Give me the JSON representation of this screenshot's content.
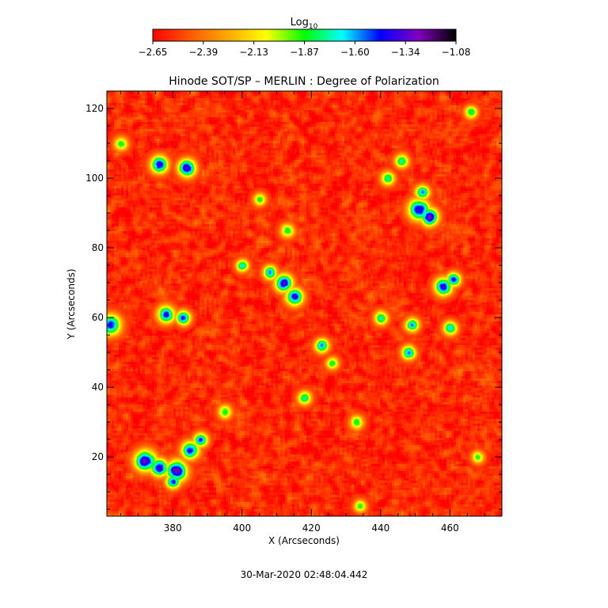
{
  "chart_data": {
    "type": "heatmap",
    "title": "Hinode SOT/SP – MERLIN : Degree of Polarization",
    "xlabel": "X (Arcseconds)",
    "ylabel": "Y (Arcseconds)",
    "xlim": [
      361,
      475
    ],
    "ylim": [
      3,
      125
    ],
    "x_ticks": [
      380,
      400,
      420,
      440,
      460
    ],
    "y_ticks": [
      20,
      40,
      60,
      80,
      100,
      120
    ],
    "colorbar": {
      "label_base": "Log",
      "label_sub": "10",
      "range": [
        -2.65,
        -1.08
      ],
      "ticks": [
        "−2.65",
        "−2.39",
        "−2.13",
        "−1.87",
        "−1.60",
        "−1.34",
        "−1.08"
      ],
      "colormap": [
        "#ff0000",
        "#ff5a00",
        "#ffaa00",
        "#ffff00",
        "#00ff00",
        "#00ffff",
        "#0000ff",
        "#8000c0",
        "#000000"
      ]
    },
    "background_level": -2.58,
    "strong_regions": [
      {
        "x": 376,
        "y": 104,
        "peak": -1.4,
        "radius": 2.5
      },
      {
        "x": 384,
        "y": 103,
        "peak": -1.35,
        "radius": 2.5
      },
      {
        "x": 362,
        "y": 58,
        "peak": -1.5,
        "radius": 3.0
      },
      {
        "x": 378,
        "y": 61,
        "peak": -1.45,
        "radius": 2.5
      },
      {
        "x": 383,
        "y": 60,
        "peak": -1.4,
        "radius": 2.0
      },
      {
        "x": 412,
        "y": 70,
        "peak": -1.35,
        "radius": 2.5
      },
      {
        "x": 415,
        "y": 66,
        "peak": -1.4,
        "radius": 2.5
      },
      {
        "x": 408,
        "y": 73,
        "peak": -1.55,
        "radius": 2.0
      },
      {
        "x": 423,
        "y": 52,
        "peak": -1.55,
        "radius": 2.0
      },
      {
        "x": 451,
        "y": 91,
        "peak": -1.35,
        "radius": 3.0
      },
      {
        "x": 454,
        "y": 89,
        "peak": -1.3,
        "radius": 2.5
      },
      {
        "x": 452,
        "y": 96,
        "peak": -1.5,
        "radius": 2.0
      },
      {
        "x": 458,
        "y": 69,
        "peak": -1.4,
        "radius": 2.5
      },
      {
        "x": 461,
        "y": 71,
        "peak": -1.45,
        "radius": 2.0
      },
      {
        "x": 449,
        "y": 58,
        "peak": -1.6,
        "radius": 2.0
      },
      {
        "x": 460,
        "y": 57,
        "peak": -1.6,
        "radius": 2.0
      },
      {
        "x": 448,
        "y": 50,
        "peak": -1.55,
        "radius": 2.0
      },
      {
        "x": 372,
        "y": 19,
        "peak": -1.3,
        "radius": 3.0
      },
      {
        "x": 376,
        "y": 17,
        "peak": -1.35,
        "radius": 2.5
      },
      {
        "x": 381,
        "y": 16,
        "peak": -1.3,
        "radius": 3.0
      },
      {
        "x": 385,
        "y": 22,
        "peak": -1.4,
        "radius": 2.5
      },
      {
        "x": 388,
        "y": 25,
        "peak": -1.45,
        "radius": 2.0
      },
      {
        "x": 380,
        "y": 13,
        "peak": -1.45,
        "radius": 2.0
      },
      {
        "x": 400,
        "y": 75,
        "peak": -1.65,
        "radius": 1.8
      },
      {
        "x": 440,
        "y": 60,
        "peak": -1.7,
        "radius": 2.0
      },
      {
        "x": 446,
        "y": 105,
        "peak": -1.7,
        "radius": 2.0
      },
      {
        "x": 442,
        "y": 100,
        "peak": -1.75,
        "radius": 2.0
      },
      {
        "x": 413,
        "y": 85,
        "peak": -1.8,
        "radius": 2.0
      },
      {
        "x": 405,
        "y": 94,
        "peak": -1.8,
        "radius": 1.8
      },
      {
        "x": 418,
        "y": 37,
        "peak": -1.75,
        "radius": 2.0
      },
      {
        "x": 433,
        "y": 30,
        "peak": -1.85,
        "radius": 2.0
      },
      {
        "x": 395,
        "y": 33,
        "peak": -1.85,
        "radius": 2.0
      },
      {
        "x": 466,
        "y": 119,
        "peak": -1.7,
        "radius": 1.8
      },
      {
        "x": 434,
        "y": 6,
        "peak": -1.85,
        "radius": 1.8
      },
      {
        "x": 468,
        "y": 20,
        "peak": -1.85,
        "radius": 1.8
      },
      {
        "x": 365,
        "y": 110,
        "peak": -1.85,
        "radius": 2.0
      },
      {
        "x": 426,
        "y": 47,
        "peak": -1.8,
        "radius": 1.8
      }
    ]
  },
  "timestamp": "30-Mar-2020 02:48:04.442"
}
